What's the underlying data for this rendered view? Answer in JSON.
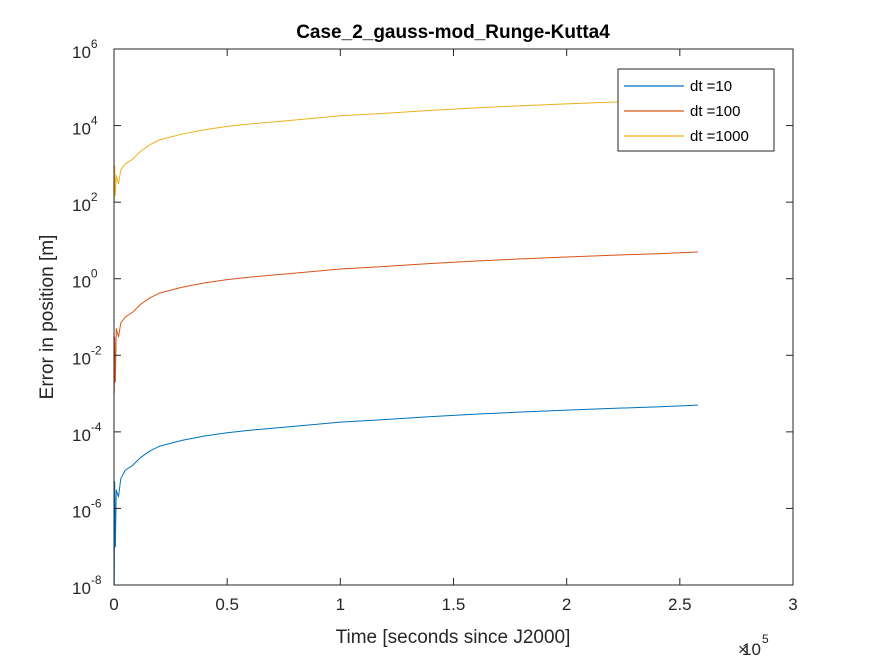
{
  "chart_data": {
    "type": "line",
    "title": "Case_2_gauss-mod_Runge-Kutta4",
    "xlabel": "Time [seconds since J2000]",
    "ylabel": "Error in position [m]",
    "x_multiplier_base": "10",
    "x_multiplier_exp": "5",
    "xlim": [
      0,
      3
    ],
    "ylim": [
      1e-08,
      1000000.0
    ],
    "yscale": "log",
    "grid": false,
    "legend_location": "top-right",
    "x_tick_labels": [
      "0",
      "0.5",
      "1",
      "1.5",
      "2",
      "2.5",
      "3"
    ],
    "y_tick_labels": [
      {
        "base": "10",
        "exp": "-8"
      },
      {
        "base": "10",
        "exp": "-6"
      },
      {
        "base": "10",
        "exp": "-4"
      },
      {
        "base": "10",
        "exp": "-2"
      },
      {
        "base": "10",
        "exp": "0"
      },
      {
        "base": "10",
        "exp": "2"
      },
      {
        "base": "10",
        "exp": "4"
      },
      {
        "base": "10",
        "exp": "6"
      }
    ],
    "series": [
      {
        "name": "dt =10",
        "color": "#0072BD",
        "x": [
          0.001,
          0.003,
          0.006,
          0.01,
          0.02,
          0.03,
          0.05,
          0.08,
          0.12,
          0.16,
          0.2,
          0.3,
          0.4,
          0.5,
          0.6,
          0.8,
          1.0,
          1.2,
          1.4,
          1.6,
          1.8,
          2.0,
          2.2,
          2.4,
          2.58
        ],
        "y": [
          1e-08,
          5e-06,
          1e-07,
          3e-06,
          2e-06,
          6e-06,
          1e-05,
          1.3e-05,
          2.2e-05,
          3.2e-05,
          4.2e-05,
          6e-05,
          7.8e-05,
          9.5e-05,
          0.00011,
          0.00014,
          0.00018,
          0.00021,
          0.00025,
          0.00029,
          0.00033,
          0.00037,
          0.00041,
          0.00045,
          0.0005
        ]
      },
      {
        "name": "dt =100",
        "color": "#D95319",
        "x": [
          0.001,
          0.003,
          0.006,
          0.01,
          0.02,
          0.03,
          0.05,
          0.08,
          0.12,
          0.16,
          0.2,
          0.3,
          0.4,
          0.5,
          0.6,
          0.8,
          1.0,
          1.2,
          1.4,
          1.6,
          1.8,
          2.0,
          2.2,
          2.4,
          2.58
        ],
        "y": [
          0.001,
          0.03,
          0.002,
          0.05,
          0.03,
          0.07,
          0.1,
          0.13,
          0.22,
          0.32,
          0.42,
          0.6,
          0.78,
          0.95,
          1.1,
          1.4,
          1.8,
          2.1,
          2.5,
          2.9,
          3.3,
          3.7,
          4.1,
          4.5,
          5.0
        ]
      },
      {
        "name": "dt =1000",
        "color": "#EDB120",
        "x": [
          0.001,
          0.003,
          0.006,
          0.01,
          0.02,
          0.03,
          0.05,
          0.08,
          0.12,
          0.16,
          0.2,
          0.3,
          0.4,
          0.5,
          0.6,
          0.8,
          1.0,
          1.2,
          1.4,
          1.6,
          1.8,
          2.0,
          2.2,
          2.4,
          2.58
        ],
        "y": [
          100,
          900,
          150,
          500,
          300,
          700,
          1000,
          1300,
          2200,
          3200,
          4200,
          6000,
          7800,
          9500,
          11000,
          14000,
          18000,
          21000,
          25000,
          29000,
          33000,
          37000,
          41000,
          45000,
          50000
        ]
      }
    ]
  }
}
